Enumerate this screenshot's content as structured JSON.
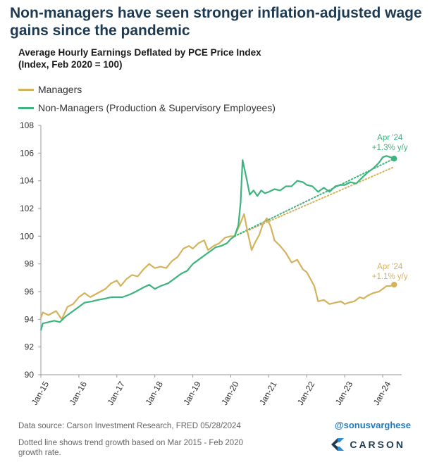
{
  "header": {
    "headline": "Non-managers have seen stronger inflation-adjusted wage gains since the pandemic",
    "subtitle_line1": "Average Hourly Earnings Deflated by PCE Price Index",
    "subtitle_line2": "(Index, Feb 2020 = 100)"
  },
  "legend": {
    "managers": "Managers",
    "non_managers": "Non-Managers (Production & Supervisory Employees)"
  },
  "colors": {
    "managers": "#d4b35c",
    "non_managers": "#3db37e",
    "axis": "#999999",
    "tick_text": "#333333",
    "headline": "#1e3a52"
  },
  "chart_data": {
    "type": "line",
    "xlabel": "",
    "ylabel": "",
    "xlim": [
      2015.0,
      2024.5
    ],
    "ylim": [
      90,
      108
    ],
    "yticks": [
      90,
      92,
      94,
      96,
      98,
      100,
      102,
      104,
      106,
      108
    ],
    "xticks": [
      "Jan-15",
      "Jan-16",
      "Jan-17",
      "Jan-18",
      "Jan-19",
      "Jan-20",
      "Jan-21",
      "Jan-22",
      "Jan-23",
      "Jan-24"
    ],
    "grid": false,
    "series": [
      {
        "name": "Managers",
        "key": "managers",
        "points": [
          [
            2015.0,
            94.1
          ],
          [
            2015.05,
            94.5
          ],
          [
            2015.2,
            94.3
          ],
          [
            2015.4,
            94.6
          ],
          [
            2015.55,
            94.0
          ],
          [
            2015.7,
            94.9
          ],
          [
            2015.85,
            95.1
          ],
          [
            2016.0,
            95.6
          ],
          [
            2016.15,
            95.9
          ],
          [
            2016.3,
            95.6
          ],
          [
            2016.5,
            95.9
          ],
          [
            2016.7,
            96.2
          ],
          [
            2016.85,
            96.6
          ],
          [
            2017.0,
            96.8
          ],
          [
            2017.1,
            96.4
          ],
          [
            2017.25,
            96.9
          ],
          [
            2017.4,
            97.2
          ],
          [
            2017.55,
            97.1
          ],
          [
            2017.7,
            97.6
          ],
          [
            2017.85,
            98.0
          ],
          [
            2018.0,
            97.7
          ],
          [
            2018.15,
            97.8
          ],
          [
            2018.3,
            97.7
          ],
          [
            2018.45,
            98.2
          ],
          [
            2018.6,
            98.5
          ],
          [
            2018.75,
            99.1
          ],
          [
            2018.9,
            99.3
          ],
          [
            2019.0,
            99.1
          ],
          [
            2019.15,
            99.5
          ],
          [
            2019.3,
            99.7
          ],
          [
            2019.4,
            99.0
          ],
          [
            2019.55,
            99.3
          ],
          [
            2019.7,
            99.5
          ],
          [
            2019.85,
            99.9
          ],
          [
            2020.0,
            100.0
          ],
          [
            2020.1,
            100.0
          ],
          [
            2020.25,
            100.9
          ],
          [
            2020.35,
            101.6
          ],
          [
            2020.45,
            100.2
          ],
          [
            2020.55,
            99.0
          ],
          [
            2020.65,
            99.6
          ],
          [
            2020.75,
            100.1
          ],
          [
            2020.85,
            100.9
          ],
          [
            2020.95,
            101.3
          ],
          [
            2021.05,
            100.7
          ],
          [
            2021.15,
            99.7
          ],
          [
            2021.3,
            99.3
          ],
          [
            2021.45,
            98.8
          ],
          [
            2021.6,
            98.1
          ],
          [
            2021.75,
            98.3
          ],
          [
            2021.9,
            97.6
          ],
          [
            2022.0,
            97.4
          ],
          [
            2022.1,
            96.9
          ],
          [
            2022.2,
            96.4
          ],
          [
            2022.3,
            95.3
          ],
          [
            2022.45,
            95.4
          ],
          [
            2022.6,
            95.1
          ],
          [
            2022.75,
            95.2
          ],
          [
            2022.9,
            95.3
          ],
          [
            2023.0,
            95.1
          ],
          [
            2023.1,
            95.2
          ],
          [
            2023.25,
            95.3
          ],
          [
            2023.4,
            95.6
          ],
          [
            2023.5,
            95.5
          ],
          [
            2023.6,
            95.7
          ],
          [
            2023.75,
            95.9
          ],
          [
            2023.9,
            96.0
          ],
          [
            2024.0,
            96.2
          ],
          [
            2024.1,
            96.4
          ],
          [
            2024.2,
            96.4
          ],
          [
            2024.3,
            96.5
          ]
        ]
      },
      {
        "name": "Non-Managers (Production & Supervisory Employees)",
        "key": "non_managers",
        "points": [
          [
            2015.0,
            93.2
          ],
          [
            2015.05,
            93.7
          ],
          [
            2015.2,
            93.8
          ],
          [
            2015.35,
            93.9
          ],
          [
            2015.5,
            93.8
          ],
          [
            2015.65,
            94.2
          ],
          [
            2015.8,
            94.5
          ],
          [
            2016.0,
            94.9
          ],
          [
            2016.15,
            95.2
          ],
          [
            2016.35,
            95.3
          ],
          [
            2016.5,
            95.4
          ],
          [
            2016.7,
            95.5
          ],
          [
            2016.85,
            95.6
          ],
          [
            2017.0,
            95.6
          ],
          [
            2017.15,
            95.6
          ],
          [
            2017.35,
            95.8
          ],
          [
            2017.5,
            96.0
          ],
          [
            2017.7,
            96.3
          ],
          [
            2017.85,
            96.5
          ],
          [
            2018.0,
            96.2
          ],
          [
            2018.15,
            96.4
          ],
          [
            2018.35,
            96.6
          ],
          [
            2018.5,
            96.9
          ],
          [
            2018.7,
            97.3
          ],
          [
            2018.85,
            97.5
          ],
          [
            2019.0,
            98.0
          ],
          [
            2019.15,
            98.3
          ],
          [
            2019.3,
            98.6
          ],
          [
            2019.45,
            98.9
          ],
          [
            2019.6,
            99.2
          ],
          [
            2019.75,
            99.3
          ],
          [
            2019.9,
            99.5
          ],
          [
            2020.0,
            99.8
          ],
          [
            2020.1,
            100.0
          ],
          [
            2020.2,
            100.8
          ],
          [
            2020.26,
            102.5
          ],
          [
            2020.31,
            105.5
          ],
          [
            2020.42,
            104.1
          ],
          [
            2020.5,
            103.0
          ],
          [
            2020.6,
            103.3
          ],
          [
            2020.7,
            102.9
          ],
          [
            2020.8,
            103.3
          ],
          [
            2020.9,
            103.1
          ],
          [
            2021.0,
            103.2
          ],
          [
            2021.15,
            103.4
          ],
          [
            2021.3,
            103.3
          ],
          [
            2021.45,
            103.6
          ],
          [
            2021.6,
            103.6
          ],
          [
            2021.75,
            104.0
          ],
          [
            2021.9,
            103.9
          ],
          [
            2022.0,
            103.7
          ],
          [
            2022.15,
            103.6
          ],
          [
            2022.3,
            103.2
          ],
          [
            2022.45,
            103.5
          ],
          [
            2022.6,
            103.2
          ],
          [
            2022.75,
            103.6
          ],
          [
            2022.9,
            103.7
          ],
          [
            2023.0,
            103.7
          ],
          [
            2023.15,
            103.9
          ],
          [
            2023.3,
            103.8
          ],
          [
            2023.45,
            104.2
          ],
          [
            2023.6,
            104.6
          ],
          [
            2023.75,
            104.9
          ],
          [
            2023.9,
            105.3
          ],
          [
            2024.0,
            105.7
          ],
          [
            2024.1,
            105.8
          ],
          [
            2024.2,
            105.7
          ],
          [
            2024.3,
            105.6
          ]
        ]
      }
    ],
    "trend_lines": [
      {
        "key": "managers",
        "from": [
          2020.1,
          100.0
        ],
        "to": [
          2024.3,
          105.0
        ]
      },
      {
        "key": "non_managers",
        "from": [
          2020.1,
          100.0
        ],
        "to": [
          2024.3,
          105.6
        ]
      }
    ],
    "annotations": [
      {
        "key": "non_managers",
        "line1": "Apr '24",
        "line2": "+1.3% y/y",
        "x": 2024.3,
        "y": 105.6
      },
      {
        "key": "managers",
        "line1": "Apr '24",
        "line2": "+1.1% y/y",
        "x": 2024.3,
        "y": 96.5
      }
    ]
  },
  "footer": {
    "source": "Data source: Carson Investment Research, FRED   05/28/2024",
    "note_line1": "Dotted line shows trend growth based on Mar 2015 - Feb 2020",
    "note_line2": "growth rate.",
    "handle": "@sonusvarghese",
    "brand": "CARSON"
  }
}
